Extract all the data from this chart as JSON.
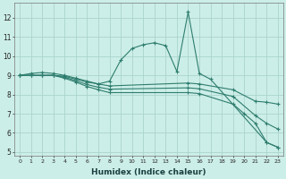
{
  "xlabel": "Humidex (Indice chaleur)",
  "background_color": "#cceee8",
  "grid_color": "#aad4cc",
  "line_color": "#2e7d6e",
  "xlim": [
    -0.5,
    23.5
  ],
  "ylim": [
    4.8,
    12.8
  ],
  "yticks": [
    5,
    6,
    7,
    8,
    9,
    10,
    11,
    12
  ],
  "xticks": [
    0,
    1,
    2,
    3,
    4,
    5,
    6,
    7,
    8,
    9,
    10,
    11,
    12,
    13,
    14,
    15,
    16,
    17,
    18,
    19,
    20,
    21,
    22,
    23
  ],
  "lines": [
    {
      "x": [
        0,
        1,
        2,
        3,
        4,
        5,
        6,
        7,
        8,
        9,
        10,
        11,
        12,
        13,
        14,
        15,
        16,
        17,
        22,
        23
      ],
      "y": [
        9.0,
        9.1,
        9.15,
        9.1,
        9.0,
        8.85,
        8.7,
        8.55,
        8.7,
        9.8,
        10.4,
        10.6,
        10.7,
        10.55,
        9.2,
        12.3,
        9.1,
        8.8,
        5.5,
        5.25
      ]
    },
    {
      "x": [
        0,
        1,
        2,
        3,
        4,
        5,
        6,
        7,
        8,
        15,
        16,
        19,
        21,
        22,
        23
      ],
      "y": [
        9.0,
        9.0,
        9.0,
        9.0,
        8.95,
        8.8,
        8.65,
        8.55,
        8.45,
        8.6,
        8.55,
        8.25,
        7.65,
        7.6,
        7.5
      ]
    },
    {
      "x": [
        0,
        1,
        2,
        3,
        4,
        5,
        6,
        7,
        8,
        15,
        16,
        19,
        21,
        22,
        23
      ],
      "y": [
        9.0,
        9.0,
        9.0,
        9.0,
        8.9,
        8.72,
        8.52,
        8.38,
        8.28,
        8.35,
        8.3,
        7.9,
        6.9,
        6.5,
        6.2
      ]
    },
    {
      "x": [
        0,
        1,
        2,
        3,
        4,
        5,
        6,
        7,
        8,
        15,
        16,
        19,
        20,
        21,
        22,
        23
      ],
      "y": [
        9.0,
        9.0,
        9.0,
        9.0,
        8.85,
        8.65,
        8.42,
        8.25,
        8.1,
        8.1,
        8.05,
        7.5,
        7.0,
        6.5,
        5.5,
        5.25
      ]
    }
  ]
}
